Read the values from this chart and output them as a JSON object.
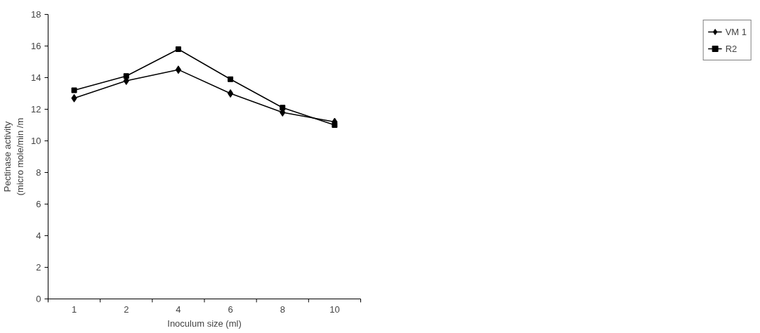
{
  "chart_data": {
    "type": "line",
    "xlabel": "Inoculum size (ml)",
    "ylabel": "Pectinase activity\n(micro mole/min /m",
    "categories": [
      "1",
      "2",
      "4",
      "6",
      "8",
      "10"
    ],
    "ylim": [
      0,
      18
    ],
    "yticks": [
      0,
      2,
      4,
      6,
      8,
      10,
      12,
      14,
      16,
      18
    ],
    "grid": false,
    "legend": "right",
    "line_style": "solid",
    "series": [
      {
        "name": "VM 1",
        "color": "#000000",
        "marker": "diamond",
        "values": [
          12.7,
          13.8,
          14.5,
          13.0,
          11.8,
          11.2
        ]
      },
      {
        "name": "R2",
        "color": "#000000",
        "marker": "square",
        "values": [
          13.2,
          14.1,
          15.8,
          13.9,
          12.1,
          11.0
        ]
      }
    ]
  }
}
